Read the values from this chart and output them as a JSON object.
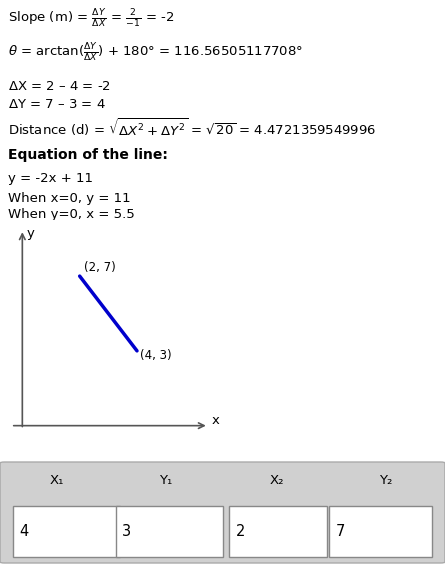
{
  "line_color": "#0000cc",
  "bg_color": "#ffffff",
  "table_bg": "#d0d0d0",
  "font_size": 9.5,
  "point1": [
    4,
    3
  ],
  "point2": [
    2,
    7
  ],
  "point1_label": "(4, 3)",
  "point2_label": "(2, 7)",
  "table_headers": [
    "X₁",
    "Y₁",
    "X₂",
    "Y₂"
  ],
  "table_values": [
    "4",
    "3",
    "2",
    "7"
  ]
}
